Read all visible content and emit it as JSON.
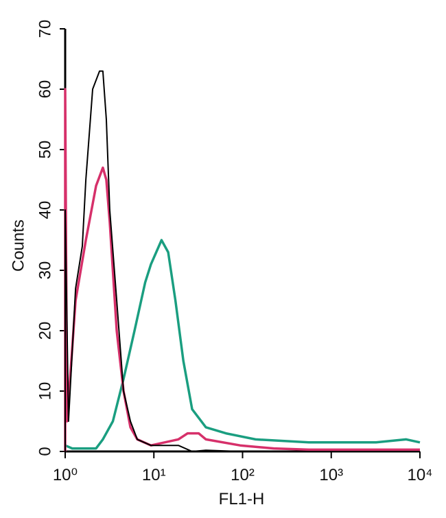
{
  "chart_data": {
    "type": "line",
    "x_label": "FL1-H",
    "y_label": "Counts",
    "xscale": "log",
    "xlim": [
      1,
      10000
    ],
    "xticks": [
      {
        "value": 1,
        "label": "10⁰"
      },
      {
        "value": 10,
        "label": "10¹"
      },
      {
        "value": 100,
        "label": "10²"
      },
      {
        "value": 1000,
        "label": "10³"
      },
      {
        "value": 10000,
        "label": "10⁴"
      }
    ],
    "ylim": [
      0,
      70
    ],
    "yticks": [
      0,
      10,
      20,
      30,
      40,
      50,
      60,
      70
    ],
    "series": [
      {
        "color": "#000000",
        "x": [
          1,
          1,
          1.09,
          1.31,
          1.56,
          1.71,
          2.04,
          2.44,
          2.66,
          2.91,
          3.18,
          3.81,
          4.55,
          5.44,
          6.5,
          9.27,
          18.9,
          27,
          38.6,
          94
        ],
        "values": [
          0,
          40,
          5,
          27,
          34,
          45,
          60,
          63,
          63,
          55,
          40,
          25,
          10,
          5,
          2,
          1,
          1,
          0,
          0.2,
          0
        ]
      },
      {
        "color": "#d6306a",
        "x": [
          1,
          1,
          1.05,
          1.31,
          1.71,
          2.23,
          2.66,
          2.91,
          3.18,
          3.81,
          4.55,
          5.44,
          6.5,
          9.27,
          18.9,
          24,
          32,
          38.6,
          94,
          225,
          560,
          1350,
          3200,
          10000
        ],
        "values": [
          0,
          60,
          5,
          25,
          35,
          44,
          47,
          45,
          38,
          20,
          10,
          4,
          2,
          1,
          2,
          3,
          3,
          2,
          1,
          0.5,
          0.3,
          0.3,
          0.3,
          0.3
        ]
      },
      {
        "color": "#1a9e80",
        "x": [
          1,
          1.2,
          1.6,
          2.23,
          2.66,
          3.45,
          4.55,
          6.05,
          7.98,
          9.27,
          12.2,
          14.5,
          17.5,
          21.5,
          27,
          38.6,
          65,
          140,
          560,
          3200,
          7000,
          10000
        ],
        "values": [
          1,
          0.5,
          0.5,
          0.5,
          2,
          5,
          12,
          20,
          28,
          31,
          35,
          33,
          25,
          15,
          7,
          4,
          3,
          2,
          1.5,
          1.5,
          2,
          1.5
        ]
      }
    ]
  }
}
